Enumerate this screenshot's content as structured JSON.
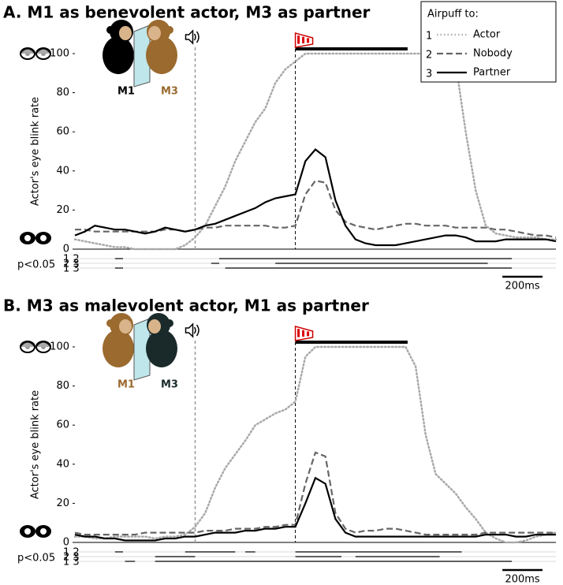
{
  "chart_data": [
    {
      "type": "line",
      "title": "A. M1 as benevolent actor, M3 as partner",
      "ylabel": "Actor's eye blink rate",
      "ylim": [
        0,
        100
      ],
      "yticks": [
        0,
        20,
        40,
        60,
        80,
        100
      ],
      "xlim": [
        -1100,
        1300
      ],
      "x": [
        -1100,
        -1050,
        -1000,
        -950,
        -900,
        -850,
        -800,
        -750,
        -700,
        -650,
        -600,
        -550,
        -500,
        -450,
        -400,
        -350,
        -300,
        -250,
        -200,
        -150,
        -100,
        -50,
        0,
        50,
        100,
        150,
        200,
        250,
        300,
        350,
        400,
        450,
        500,
        550,
        600,
        650,
        700,
        750,
        800,
        850,
        900,
        950,
        1000,
        1050,
        1100,
        1150,
        1200,
        1250,
        1300
      ],
      "series": [
        {
          "name": "Actor",
          "number": 1,
          "color": "#a9a9a9",
          "linestyle": "dotted",
          "values": [
            5,
            4,
            3,
            2,
            1,
            1,
            0,
            0,
            0,
            0,
            0,
            2,
            6,
            12,
            22,
            32,
            45,
            55,
            65,
            72,
            85,
            92,
            96,
            100,
            100,
            100,
            100,
            100,
            100,
            100,
            100,
            100,
            100,
            100,
            100,
            100,
            100,
            100,
            95,
            60,
            30,
            12,
            8,
            7,
            6,
            6,
            6,
            5,
            5
          ]
        },
        {
          "name": "Nobody",
          "number": 2,
          "color": "#666666",
          "linestyle": "dashed",
          "values": [
            10,
            10,
            9,
            9,
            9,
            9,
            9,
            9,
            9,
            10,
            10,
            9,
            10,
            11,
            11,
            12,
            12,
            12,
            12,
            12,
            11,
            11,
            12,
            28,
            35,
            34,
            20,
            14,
            12,
            11,
            10,
            11,
            12,
            13,
            13,
            12,
            12,
            12,
            11,
            11,
            11,
            11,
            10,
            10,
            9,
            8,
            7,
            7,
            6
          ]
        },
        {
          "name": "Partner",
          "number": 3,
          "color": "#000000",
          "linestyle": "solid",
          "values": [
            7,
            9,
            12,
            11,
            10,
            10,
            9,
            8,
            9,
            11,
            10,
            9,
            10,
            12,
            13,
            15,
            17,
            19,
            21,
            24,
            26,
            27,
            28,
            45,
            51,
            47,
            25,
            12,
            5,
            3,
            2,
            2,
            2,
            3,
            4,
            5,
            6,
            7,
            7,
            6,
            4,
            4,
            4,
            5,
            5,
            5,
            5,
            5,
            4
          ]
        }
      ],
      "legend": {
        "title": "Airpuff to:",
        "position": "upper right"
      },
      "events": {
        "sound": -500,
        "airpuff": [
          0,
          560
        ]
      },
      "actors": [
        {
          "label": "M1",
          "color": "#000000"
        },
        {
          "label": "M3",
          "color": "#9a6a2f"
        }
      ],
      "significance": {
        "label": "p<0.05",
        "rows": [
          {
            "pair": "1 2",
            "segments": [
              [
                -900,
                -860
              ],
              [
                -380,
                1080
              ]
            ]
          },
          {
            "pair": "2 3",
            "segments": [
              [
                -420,
                -380
              ],
              [
                -100,
                960
              ]
            ]
          },
          {
            "pair": "1 3",
            "segments": [
              [
                -900,
                -860
              ],
              [
                -350,
                1080
              ]
            ]
          }
        ]
      },
      "scalebar": {
        "value": 200,
        "label": "200ms"
      }
    },
    {
      "type": "line",
      "title": "B. M3 as malevolent actor, M1 as partner",
      "ylabel": "Actor's eye blink rate",
      "ylim": [
        0,
        100
      ],
      "yticks": [
        0,
        20,
        40,
        60,
        80,
        100
      ],
      "xlim": [
        -1100,
        1300
      ],
      "x": [
        -1100,
        -1050,
        -1000,
        -950,
        -900,
        -850,
        -800,
        -750,
        -700,
        -650,
        -600,
        -550,
        -500,
        -450,
        -400,
        -350,
        -300,
        -250,
        -200,
        -150,
        -100,
        -50,
        0,
        50,
        100,
        150,
        200,
        250,
        300,
        350,
        400,
        450,
        500,
        550,
        600,
        650,
        700,
        750,
        800,
        850,
        900,
        950,
        1000,
        1050,
        1100,
        1150,
        1200,
        1250,
        1300
      ],
      "series": [
        {
          "name": "Actor",
          "color": "#a9a9a9",
          "linestyle": "dotted",
          "values": [
            3,
            3,
            2,
            2,
            3,
            3,
            3,
            3,
            2,
            3,
            3,
            4,
            8,
            15,
            28,
            38,
            45,
            52,
            60,
            63,
            66,
            68,
            72,
            95,
            100,
            100,
            100,
            100,
            100,
            100,
            100,
            100,
            100,
            100,
            90,
            55,
            35,
            30,
            25,
            18,
            12,
            5,
            2,
            0,
            0,
            1,
            3,
            4,
            5
          ]
        },
        {
          "name": "Nobody",
          "color": "#666666",
          "linestyle": "dashed",
          "values": [
            5,
            4,
            4,
            4,
            4,
            4,
            4,
            5,
            5,
            5,
            5,
            5,
            5,
            6,
            6,
            6,
            7,
            7,
            7,
            8,
            8,
            9,
            9,
            30,
            46,
            44,
            15,
            7,
            5,
            6,
            6,
            7,
            7,
            6,
            5,
            4,
            4,
            4,
            4,
            4,
            4,
            5,
            5,
            5,
            5,
            5,
            5,
            5,
            5
          ]
        },
        {
          "name": "Partner",
          "color": "#000000",
          "linestyle": "solid",
          "values": [
            4,
            3,
            3,
            2,
            2,
            1,
            1,
            1,
            1,
            2,
            2,
            3,
            3,
            4,
            5,
            5,
            5,
            6,
            6,
            7,
            7,
            8,
            8,
            20,
            33,
            30,
            12,
            5,
            3,
            3,
            3,
            3,
            3,
            3,
            3,
            3,
            3,
            3,
            3,
            3,
            3,
            4,
            4,
            4,
            3,
            3,
            4,
            4,
            4
          ]
        }
      ],
      "events": {
        "sound": -500,
        "airpuff": [
          0,
          560
        ]
      },
      "actors": [
        {
          "label": "M1",
          "color": "#9a6a2f"
        },
        {
          "label": "M3",
          "color": "#1a2a2a"
        }
      ],
      "significance": {
        "label": "p<0.05",
        "rows": [
          {
            "pair": "1 2",
            "segments": [
              [
                -900,
                -860
              ],
              [
                -550,
                -300
              ],
              [
                -250,
                -200
              ],
              [
                0,
                830
              ]
            ]
          },
          {
            "pair": "2 3",
            "segments": [
              [
                -700,
                -500
              ],
              [
                0,
                230
              ],
              [
                300,
                720
              ]
            ]
          },
          {
            "pair": "1 3",
            "segments": [
              [
                -850,
                -800
              ],
              [
                -700,
                1080
              ]
            ]
          }
        ]
      },
      "scalebar": {
        "value": 200,
        "label": "200ms"
      }
    }
  ]
}
